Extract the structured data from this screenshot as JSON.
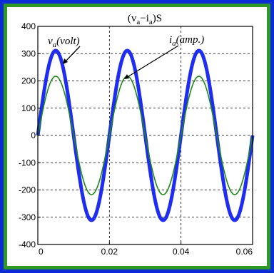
{
  "chart_data": {
    "type": "line",
    "title": "(v_a−i_a)S",
    "xlim": [
      0,
      0.06
    ],
    "ylim": [
      -400,
      400
    ],
    "x_ticks": [
      "0",
      "0.02",
      "0.04",
      "0.06"
    ],
    "y_ticks": [
      "400",
      "300",
      "200",
      "100",
      "0",
      "-100",
      "-200",
      "-300",
      "-400"
    ],
    "grid": true,
    "frequency_hz": 50,
    "series": [
      {
        "name": "v_a(volt)",
        "amplitude": 311,
        "color": "#1f2cf2"
      },
      {
        "name": "i_a(amp.)",
        "amplitude": 217,
        "color": "#1c8a16"
      }
    ]
  },
  "labels": {
    "title_main": "(v",
    "title_sub1": "a",
    "title_mid": "−i",
    "title_sub2": "a",
    "title_end": ")S",
    "v_main": "v",
    "v_sub": "a",
    "v_rest": "(volt)",
    "i_main": "i",
    "i_sub": "a",
    "i_rest": "(amp.)"
  }
}
